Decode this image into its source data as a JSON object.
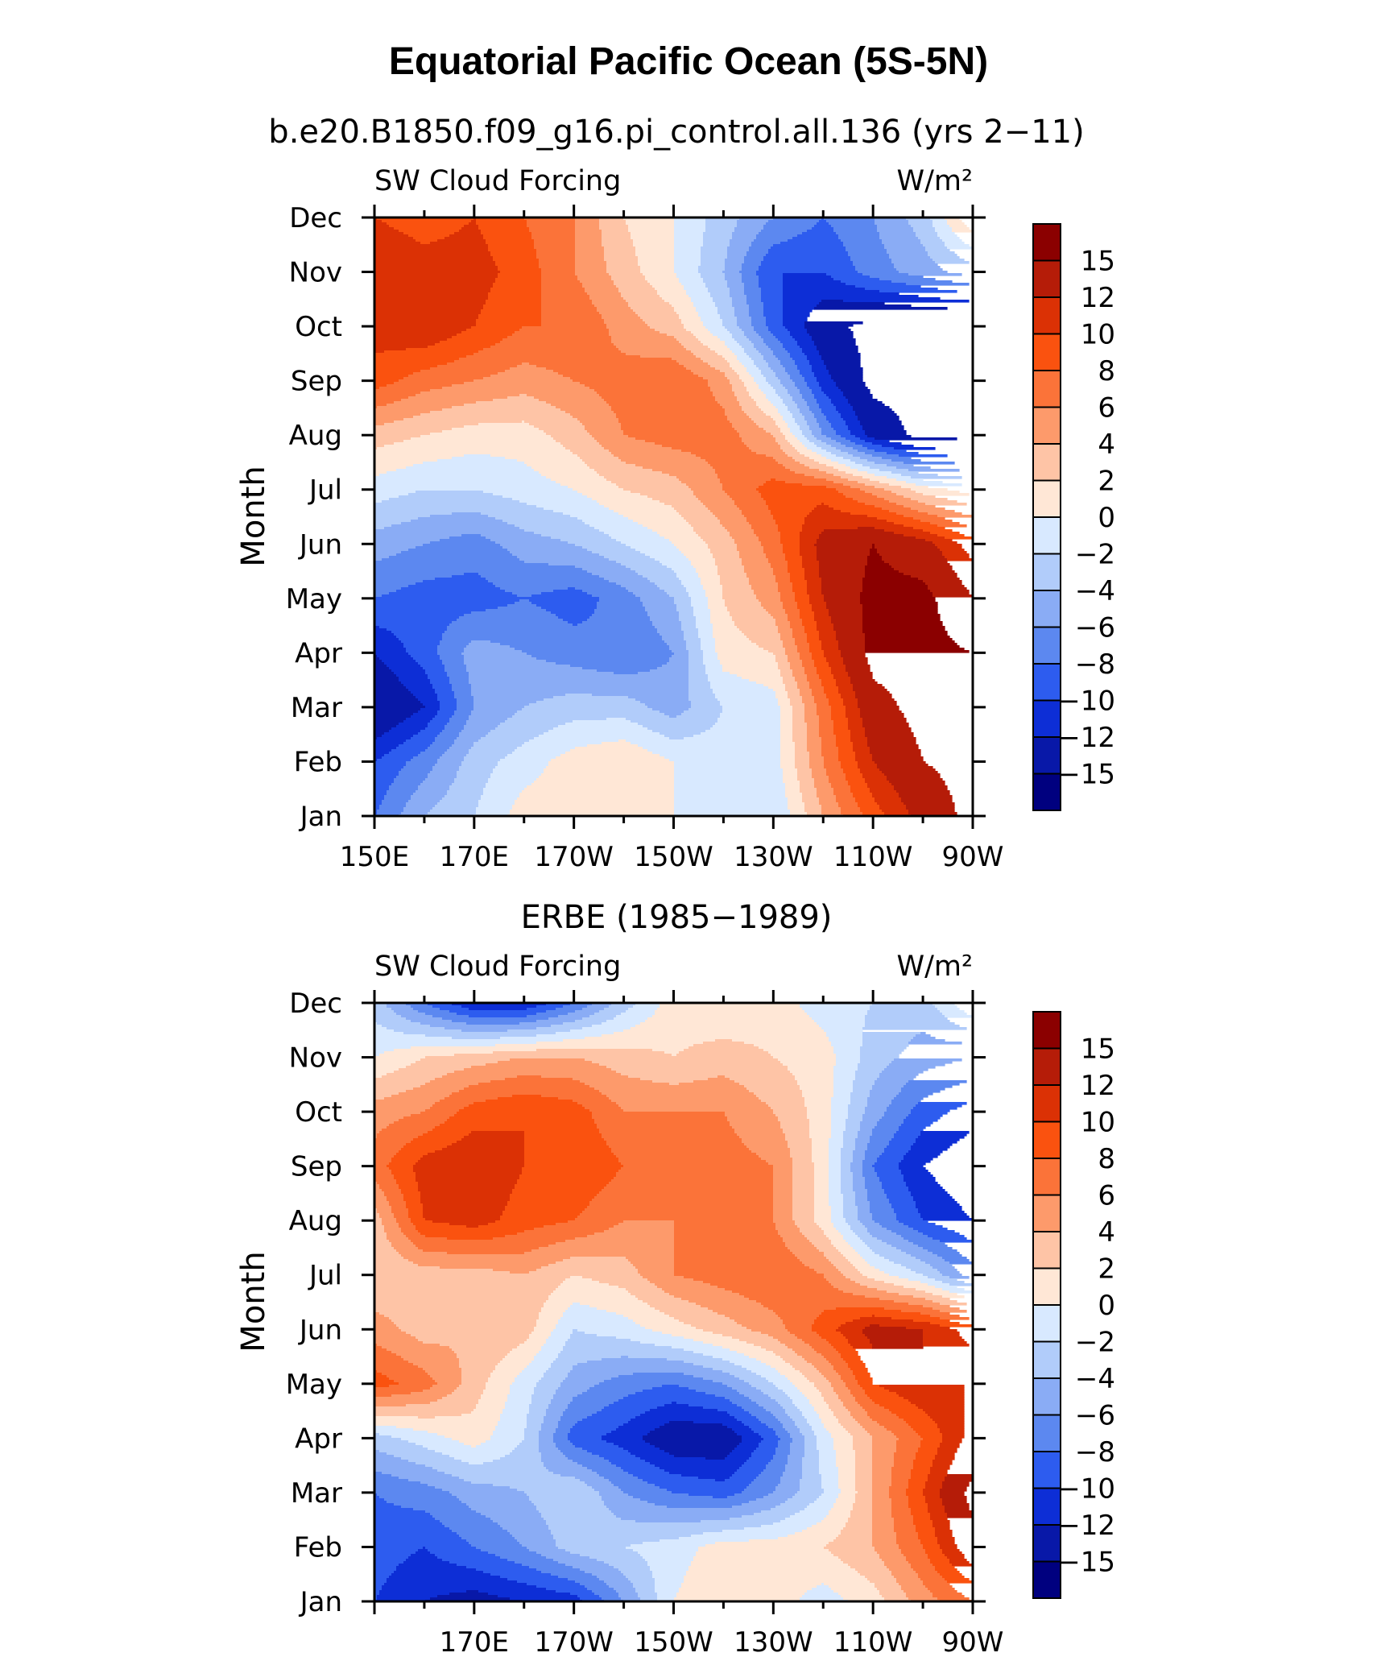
{
  "title": "Equatorial Pacific Ocean (5S-5N)",
  "colorbar": {
    "labels": [
      "15",
      "12",
      "10",
      "8",
      "6",
      "4",
      "2",
      "0",
      "−2",
      "−4",
      "−6",
      "−8",
      "−10",
      "−12",
      "−15"
    ],
    "colors": [
      "#8b0000",
      "#b51c08",
      "#db3105",
      "#fa520f",
      "#fb7339",
      "#fd9a6b",
      "#fec4a6",
      "#ffe7d6",
      "#d8e9ff",
      "#b1ccfa",
      "#8aacf5",
      "#5c88f0",
      "#2d5cef",
      "#0d2ed6",
      "#0818a8",
      "#00007f"
    ]
  },
  "chart_data": [
    {
      "type": "heatmap",
      "title": "b.e20.B1850.f09_g16.pi_control.all.136 (yrs 2−11)",
      "left_label": "SW Cloud Forcing",
      "right_label": "W/m²",
      "ylabel": "Month",
      "xlabel": "",
      "x_ticks": [
        "150E",
        "170E",
        "170W",
        "150W",
        "130W",
        "110W",
        "90W"
      ],
      "y_ticks": [
        "Jan",
        "Feb",
        "Mar",
        "Apr",
        "May",
        "Jun",
        "Jul",
        "Aug",
        "Sep",
        "Oct",
        "Nov",
        "Dec"
      ],
      "xlim": [
        150,
        270
      ],
      "grid": false,
      "lons": [
        150,
        160,
        170,
        180,
        190,
        200,
        210,
        220,
        230,
        240,
        250,
        260,
        270
      ],
      "months": [
        "Jan",
        "Feb",
        "Mar",
        "Apr",
        "May",
        "Jun",
        "Jul",
        "Aug",
        "Sep",
        "Oct",
        "Nov",
        "Dec"
      ],
      "values": [
        [
          -8,
          -4,
          -2,
          1,
          1,
          1,
          0,
          -1,
          -2,
          4,
          9,
          13,
          16
        ],
        [
          -10,
          -7,
          -3,
          -1,
          1,
          2,
          0,
          -1,
          -1,
          6,
          12,
          15,
          16
        ],
        [
          -15,
          -12,
          -6,
          -4,
          -3,
          -3,
          -5,
          -2,
          -1,
          7,
          14,
          16,
          16
        ],
        [
          -12,
          -9,
          -5,
          -6,
          -7,
          -8,
          -6,
          1,
          2,
          10,
          16,
          16,
          15
        ],
        [
          -8,
          -9,
          -9,
          -8,
          -9,
          -7,
          -4,
          2,
          5,
          12,
          16,
          16,
          12
        ],
        [
          -5,
          -6,
          -7,
          -5,
          -4,
          -2,
          0,
          3,
          7,
          13,
          15,
          13,
          9
        ],
        [
          -1,
          -2,
          -2,
          -1,
          0,
          2,
          3,
          6,
          9,
          9,
          5,
          1,
          -1
        ],
        [
          3,
          2,
          1,
          1,
          3,
          6,
          7,
          7,
          4,
          -6,
          -13,
          -16,
          -16
        ],
        [
          9,
          7,
          6,
          5,
          6,
          7,
          8,
          5,
          -3,
          -11,
          -16,
          -16,
          -16
        ],
        [
          11,
          12,
          10,
          8,
          8,
          5,
          3,
          -2,
          -9,
          -14,
          -16,
          -16,
          -16
        ],
        [
          12,
          11,
          11,
          9,
          6,
          3,
          0,
          -4,
          -10,
          -10,
          -7,
          -5,
          -3
        ],
        [
          10,
          9,
          10,
          8,
          6,
          2,
          0,
          -3,
          -6,
          -8,
          -6,
          -3,
          4
        ]
      ]
    },
    {
      "type": "heatmap",
      "title": "ERBE (1985−1989)",
      "left_label": "SW Cloud Forcing",
      "right_label": "W/m²",
      "ylabel": "Month",
      "xlabel": "",
      "x_ticks": [
        "170E",
        "170W",
        "150W",
        "130W",
        "110W",
        "90W"
      ],
      "y_ticks": [
        "Jan",
        "Feb",
        "Mar",
        "Apr",
        "May",
        "Jun",
        "Jul",
        "Aug",
        "Sep",
        "Oct",
        "Nov",
        "Dec"
      ],
      "xlim": [
        150,
        270
      ],
      "grid": false,
      "lons": [
        150,
        160,
        170,
        180,
        190,
        200,
        210,
        220,
        230,
        240,
        250,
        260,
        270
      ],
      "months": [
        "Jan",
        "Feb",
        "Mar",
        "Apr",
        "May",
        "Jun",
        "Jul",
        "Aug",
        "Sep",
        "Oct",
        "Nov",
        "Dec"
      ],
      "values": [
        [
          -10,
          -12,
          -13,
          -12,
          -11,
          -6,
          0,
          2,
          1,
          -1,
          1,
          5,
          8
        ],
        [
          -9,
          -10,
          -8,
          -6,
          -3,
          -2,
          -1,
          1,
          1,
          2,
          4,
          8,
          14
        ],
        [
          -8,
          -7,
          -5,
          -4,
          -2,
          -6,
          -8,
          -9,
          -6,
          -2,
          4,
          10,
          16
        ],
        [
          -3,
          -1,
          1,
          -2,
          -9,
          -11,
          -14,
          -14,
          -9,
          -1,
          4,
          8,
          13
        ],
        [
          9,
          7,
          3,
          -1,
          -5,
          -7,
          -8,
          -6,
          -2,
          3,
          10,
          12,
          12
        ],
        [
          5,
          3,
          4,
          3,
          -2,
          -1,
          1,
          3,
          5,
          9,
          13,
          12,
          9
        ],
        [
          2,
          3,
          3,
          4,
          2,
          3,
          6,
          7,
          8,
          6,
          1,
          -2,
          -7
        ],
        [
          3,
          10,
          11,
          9,
          8,
          6,
          6,
          8,
          6,
          1,
          -6,
          -10,
          -12
        ],
        [
          7,
          11,
          12,
          10,
          10,
          8,
          7,
          7,
          6,
          1,
          -8,
          -12,
          -14
        ],
        [
          5,
          6,
          9,
          10,
          9,
          6,
          6,
          6,
          4,
          1,
          -5,
          -9,
          -11
        ],
        [
          0,
          2,
          3,
          4,
          4,
          3,
          2,
          3,
          2,
          1,
          -3,
          -5,
          -6
        ],
        [
          -3,
          -8,
          -12,
          -12,
          -8,
          -3,
          1,
          0,
          1,
          -1,
          -2,
          -3,
          2
        ]
      ]
    }
  ]
}
